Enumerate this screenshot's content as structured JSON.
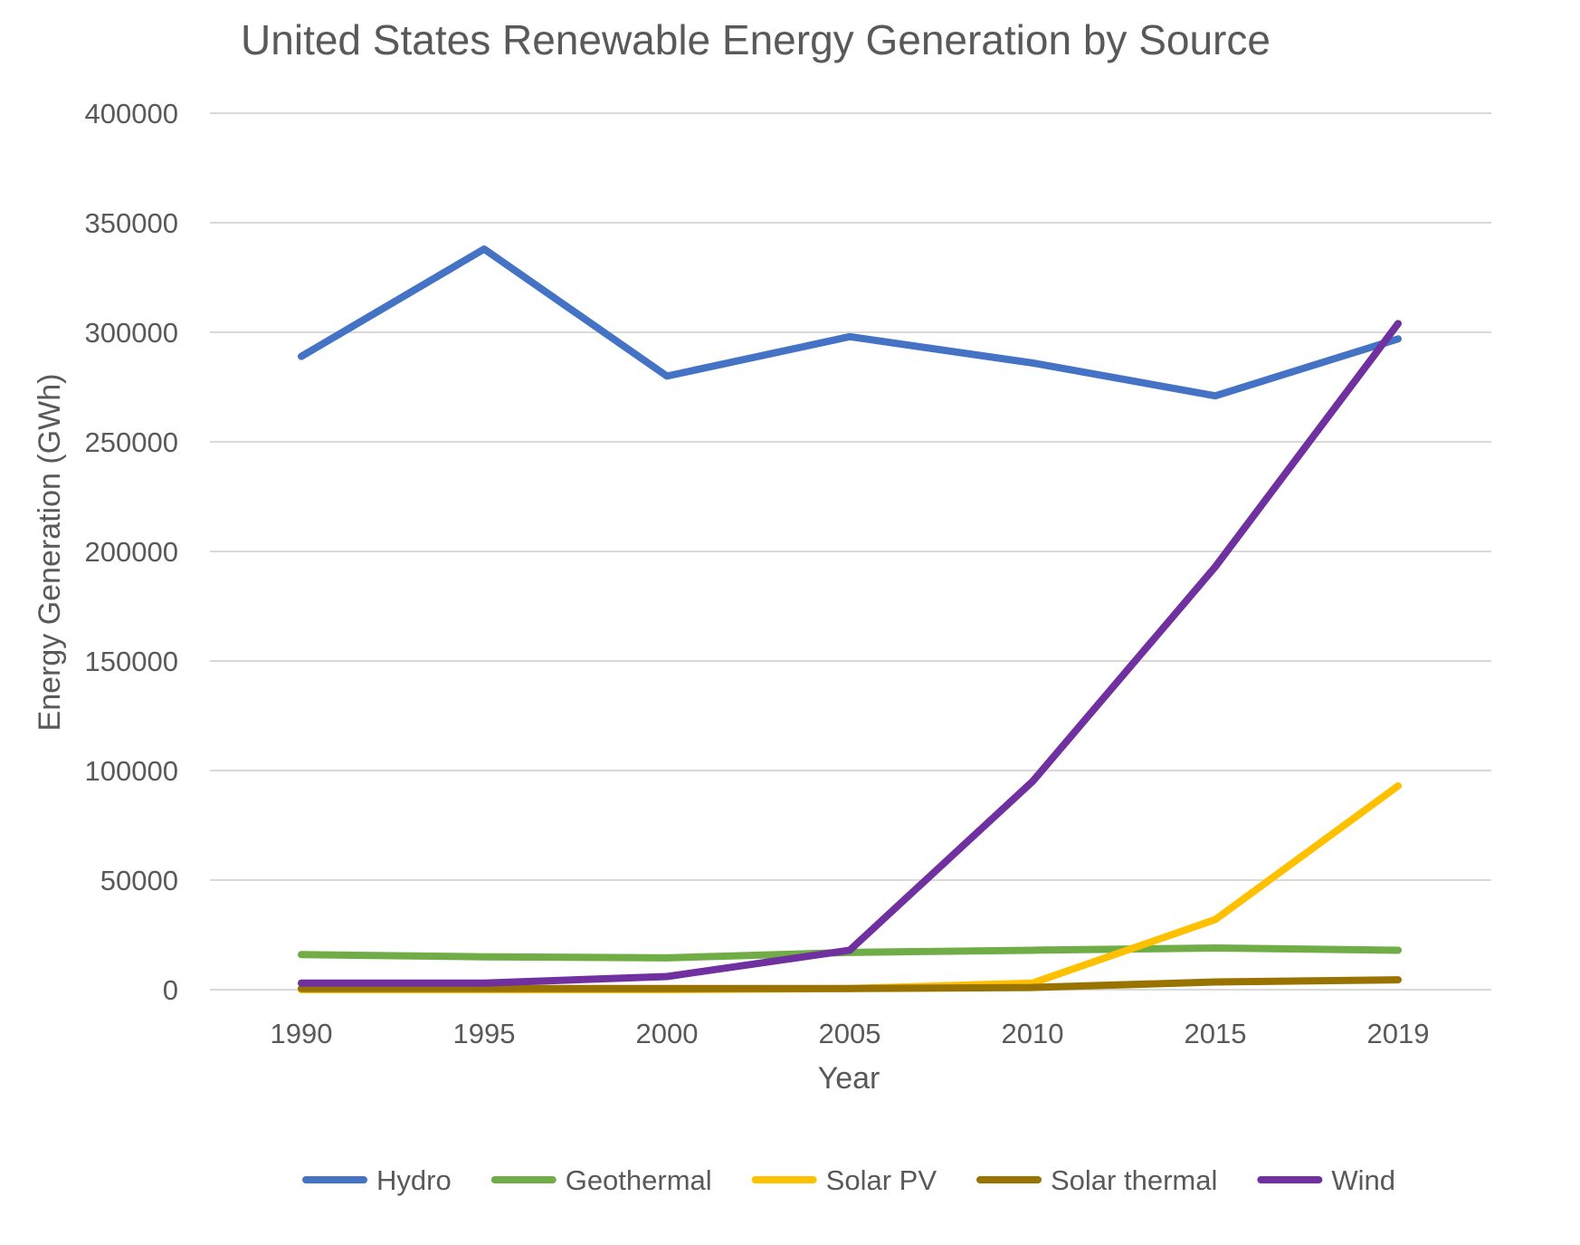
{
  "chart_data": {
    "type": "line",
    "title": "United States Renewable Energy Generation by Source",
    "xlabel": "Year",
    "ylabel": "Energy Generation (GWh)",
    "categories": [
      "1990",
      "1995",
      "2000",
      "2005",
      "2010",
      "2015",
      "2019"
    ],
    "ylim": [
      0,
      400000
    ],
    "yticks": [
      "0",
      "50000",
      "100000",
      "150000",
      "200000",
      "250000",
      "300000",
      "350000",
      "400000"
    ],
    "grid": true,
    "legend_position": "bottom",
    "series": [
      {
        "name": "Hydro",
        "color": "#4472C4",
        "values": [
          289000,
          338000,
          280000,
          298000,
          286000,
          271000,
          297000
        ]
      },
      {
        "name": "Geothermal",
        "color": "#70AD47",
        "values": [
          16000,
          15000,
          14500,
          17000,
          18000,
          19000,
          18000
        ]
      },
      {
        "name": "Solar PV",
        "color": "#FFC000",
        "values": [
          0,
          0,
          0,
          500,
          3000,
          32000,
          93000
        ]
      },
      {
        "name": "Solar thermal",
        "color": "#997300",
        "values": [
          500,
          500,
          500,
          500,
          1000,
          3500,
          4500
        ]
      },
      {
        "name": "Wind",
        "color": "#7030A0",
        "values": [
          3000,
          3000,
          6000,
          18000,
          95000,
          193000,
          304000
        ]
      }
    ]
  }
}
